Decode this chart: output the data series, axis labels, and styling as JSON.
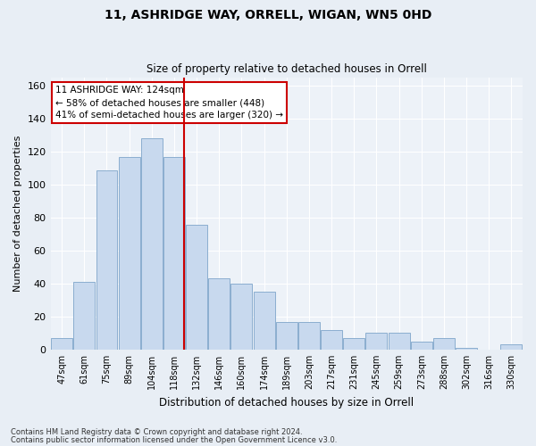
{
  "title1": "11, ASHRIDGE WAY, ORRELL, WIGAN, WN5 0HD",
  "title2": "Size of property relative to detached houses in Orrell",
  "xlabel": "Distribution of detached houses by size in Orrell",
  "ylabel": "Number of detached properties",
  "categories": [
    "47sqm",
    "61sqm",
    "75sqm",
    "89sqm",
    "104sqm",
    "118sqm",
    "132sqm",
    "146sqm",
    "160sqm",
    "174sqm",
    "189sqm",
    "203sqm",
    "217sqm",
    "231sqm",
    "245sqm",
    "259sqm",
    "273sqm",
    "288sqm",
    "302sqm",
    "316sqm",
    "330sqm"
  ],
  "values": [
    7,
    41,
    109,
    117,
    128,
    117,
    76,
    43,
    40,
    35,
    17,
    17,
    12,
    7,
    10,
    10,
    5,
    7,
    1,
    0,
    3
  ],
  "bar_color": "#c8d9ee",
  "bar_edge_color": "#8baecf",
  "vline_color": "#cc0000",
  "annotation_text": "11 ASHRIDGE WAY: 124sqm\n← 58% of detached houses are smaller (448)\n41% of semi-detached houses are larger (320) →",
  "annotation_box_color": "#ffffff",
  "annotation_box_edge": "#cc0000",
  "ylim": [
    0,
    165
  ],
  "yticks": [
    0,
    20,
    40,
    60,
    80,
    100,
    120,
    140,
    160
  ],
  "footer1": "Contains HM Land Registry data © Crown copyright and database right 2024.",
  "footer2": "Contains public sector information licensed under the Open Government Licence v3.0.",
  "bg_color": "#e8eef5",
  "plot_bg_color": "#edf2f8",
  "grid_color": "#ffffff"
}
